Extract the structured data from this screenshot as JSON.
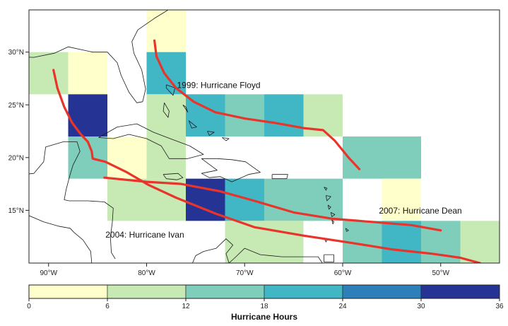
{
  "map": {
    "lon_range": [
      -92.0,
      -44.0
    ],
    "lat_range": [
      10.0,
      34.0
    ],
    "lon_ticks": [
      {
        "value": -90,
        "label": "90°W"
      },
      {
        "value": -80,
        "label": "80°W"
      },
      {
        "value": -70,
        "label": "70°W"
      },
      {
        "value": -60,
        "label": "60°W"
      },
      {
        "value": -50,
        "label": "50°W"
      }
    ],
    "lat_ticks": [
      {
        "value": 15,
        "label": "15°N"
      },
      {
        "value": 20,
        "label": "20°N"
      },
      {
        "value": 25,
        "label": "25°N"
      },
      {
        "value": 30,
        "label": "30°N"
      }
    ],
    "grid_cells": [
      {
        "lon_min": -80,
        "lon_max": -76,
        "lat_min": 30,
        "lat_max": 34,
        "hours": 3
      },
      {
        "lon_min": -92,
        "lon_max": -88,
        "lat_min": 26,
        "lat_max": 30,
        "hours": 9
      },
      {
        "lon_min": -88,
        "lon_max": -84,
        "lat_min": 26,
        "lat_max": 30,
        "hours": 3
      },
      {
        "lon_min": -80,
        "lon_max": -76,
        "lat_min": 26,
        "lat_max": 30,
        "hours": 21
      },
      {
        "lon_min": -88,
        "lon_max": -84,
        "lat_min": 22,
        "lat_max": 26,
        "hours": 33
      },
      {
        "lon_min": -80,
        "lon_max": -76,
        "lat_min": 22,
        "lat_max": 26,
        "hours": 9
      },
      {
        "lon_min": -76,
        "lon_max": -72,
        "lat_min": 22,
        "lat_max": 26,
        "hours": 21
      },
      {
        "lon_min": -72,
        "lon_max": -68,
        "lat_min": 22,
        "lat_max": 26,
        "hours": 15
      },
      {
        "lon_min": -68,
        "lon_max": -64,
        "lat_min": 22,
        "lat_max": 26,
        "hours": 21
      },
      {
        "lon_min": -64,
        "lon_max": -60,
        "lat_min": 22,
        "lat_max": 26,
        "hours": 9
      },
      {
        "lon_min": -88,
        "lon_max": -84,
        "lat_min": 18,
        "lat_max": 22,
        "hours": 15
      },
      {
        "lon_min": -84,
        "lon_max": -80,
        "lat_min": 18,
        "lat_max": 22,
        "hours": 3
      },
      {
        "lon_min": -80,
        "lon_max": -76,
        "lat_min": 18,
        "lat_max": 22,
        "hours": 9
      },
      {
        "lon_min": -60,
        "lon_max": -56,
        "lat_min": 18,
        "lat_max": 22,
        "hours": 15
      },
      {
        "lon_min": -56,
        "lon_max": -52,
        "lat_min": 18,
        "lat_max": 22,
        "hours": 15
      },
      {
        "lon_min": -84,
        "lon_max": -80,
        "lat_min": 14,
        "lat_max": 18,
        "hours": 9
      },
      {
        "lon_min": -80,
        "lon_max": -76,
        "lat_min": 14,
        "lat_max": 18,
        "hours": 9
      },
      {
        "lon_min": -76,
        "lon_max": -72,
        "lat_min": 14,
        "lat_max": 18,
        "hours": 33
      },
      {
        "lon_min": -72,
        "lon_max": -68,
        "lat_min": 14,
        "lat_max": 18,
        "hours": 21
      },
      {
        "lon_min": -68,
        "lon_max": -64,
        "lat_min": 14,
        "lat_max": 18,
        "hours": 15
      },
      {
        "lon_min": -64,
        "lon_max": -60,
        "lat_min": 14,
        "lat_max": 18,
        "hours": 15
      },
      {
        "lon_min": -56,
        "lon_max": -52,
        "lat_min": 14,
        "lat_max": 18,
        "hours": 3
      },
      {
        "lon_min": -72,
        "lon_max": -68,
        "lat_min": 10,
        "lat_max": 14,
        "hours": 9
      },
      {
        "lon_min": -68,
        "lon_max": -64,
        "lat_min": 10,
        "lat_max": 14,
        "hours": 9
      },
      {
        "lon_min": -60,
        "lon_max": -56,
        "lat_min": 10,
        "lat_max": 14,
        "hours": 15
      },
      {
        "lon_min": -56,
        "lon_max": -52,
        "lat_min": 10,
        "lat_max": 14,
        "hours": 21
      },
      {
        "lon_min": -52,
        "lon_max": -48,
        "lat_min": 10,
        "lat_max": 14,
        "hours": 15
      },
      {
        "lon_min": -48,
        "lon_max": -44,
        "lat_min": 10,
        "lat_max": 14,
        "hours": 9
      }
    ],
    "tracks": [
      {
        "name": "1999: Hurricane Floyd",
        "color": "#e8342a",
        "points": [
          [
            -79.2,
            31.1
          ],
          [
            -79.0,
            29.6
          ],
          [
            -78.2,
            28.0
          ],
          [
            -77.0,
            26.6
          ],
          [
            -75.2,
            25.3
          ],
          [
            -73.0,
            24.3
          ],
          [
            -70.0,
            23.7
          ],
          [
            -67.0,
            23.3
          ],
          [
            -64.0,
            22.8
          ],
          [
            -62.0,
            22.6
          ],
          [
            -60.8,
            21.6
          ],
          [
            -59.4,
            20.0
          ],
          [
            -58.3,
            18.9
          ]
        ]
      },
      {
        "name": "2004: Hurricane Ivan",
        "color": "#e8342a",
        "points": [
          [
            -89.5,
            28.3
          ],
          [
            -89.1,
            26.6
          ],
          [
            -88.4,
            24.8
          ],
          [
            -87.6,
            23.3
          ],
          [
            -86.7,
            22.2
          ],
          [
            -86.0,
            21.5
          ],
          [
            -85.6,
            20.6
          ],
          [
            -85.5,
            19.9
          ],
          [
            -84.2,
            19.6
          ],
          [
            -82.0,
            18.6
          ],
          [
            -79.8,
            17.4
          ],
          [
            -77.0,
            16.2
          ],
          [
            -73.0,
            14.7
          ],
          [
            -69.0,
            13.4
          ],
          [
            -64.0,
            12.6
          ],
          [
            -59.0,
            11.9
          ],
          [
            -55.0,
            11.3
          ],
          [
            -51.0,
            10.9
          ],
          [
            -48.0,
            10.5
          ],
          [
            -46.0,
            10.0
          ]
        ]
      },
      {
        "name": "2007: Hurricane Dean",
        "color": "#e8342a",
        "points": [
          [
            -84.3,
            18.1
          ],
          [
            -80.0,
            17.7
          ],
          [
            -76.5,
            17.5
          ],
          [
            -72.5,
            16.8
          ],
          [
            -69.0,
            15.9
          ],
          [
            -65.0,
            14.8
          ],
          [
            -61.0,
            14.2
          ],
          [
            -57.0,
            13.9
          ],
          [
            -53.0,
            13.6
          ],
          [
            -50.0,
            13.1
          ]
        ]
      }
    ],
    "storm_labels": [
      {
        "text": "1999: Hurricane Floyd",
        "lon": -76.9,
        "lat": 26.6
      },
      {
        "text": "2004: Hurricane Ivan",
        "lon": -84.2,
        "lat": 12.4
      },
      {
        "text": "2007: Hurricane Dean",
        "lon": -56.3,
        "lat": 14.7
      }
    ],
    "coastlines": [
      [
        [
          -97.2,
          27.6
        ],
        [
          -94.5,
          29.6
        ],
        [
          -91.5,
          29.5
        ],
        [
          -89.4,
          29.9
        ],
        [
          -88.0,
          30.5
        ],
        [
          -85.5,
          30.0
        ],
        [
          -84.0,
          30.0
        ],
        [
          -83.0,
          29.0
        ],
        [
          -82.6,
          27.8
        ],
        [
          -81.8,
          26.2
        ],
        [
          -81.0,
          25.2
        ],
        [
          -80.4,
          25.3
        ],
        [
          -80.1,
          26.5
        ],
        [
          -80.5,
          28.3
        ],
        [
          -81.3,
          29.9
        ],
        [
          -81.5,
          31.0
        ],
        [
          -80.9,
          32.1
        ],
        [
          -79.2,
          33.2
        ],
        [
          -77.8,
          34.0
        ],
        [
          -76.5,
          34.8
        ]
      ],
      [
        [
          -84.9,
          21.9
        ],
        [
          -83.0,
          22.9
        ],
        [
          -81.0,
          23.2
        ],
        [
          -79.3,
          22.4
        ],
        [
          -77.6,
          21.8
        ],
        [
          -75.6,
          21.1
        ],
        [
          -74.2,
          20.3
        ],
        [
          -75.8,
          19.9
        ],
        [
          -77.7,
          19.9
        ],
        [
          -78.5,
          21.1
        ],
        [
          -80.0,
          21.8
        ],
        [
          -81.8,
          22.2
        ],
        [
          -83.4,
          21.8
        ],
        [
          -84.9,
          21.9
        ]
      ],
      [
        [
          -74.4,
          19.9
        ],
        [
          -72.8,
          19.9
        ],
        [
          -71.3,
          19.8
        ],
        [
          -69.9,
          19.6
        ],
        [
          -68.4,
          18.6
        ],
        [
          -69.6,
          18.4
        ],
        [
          -71.3,
          17.7
        ],
        [
          -72.5,
          18.2
        ],
        [
          -73.6,
          18.1
        ],
        [
          -74.4,
          18.5
        ],
        [
          -72.8,
          18.8
        ],
        [
          -74.4,
          19.9
        ]
      ],
      [
        [
          -78.3,
          18.4
        ],
        [
          -76.8,
          18.5
        ],
        [
          -76.3,
          18.1
        ],
        [
          -76.9,
          17.9
        ],
        [
          -78.0,
          18.0
        ],
        [
          -78.3,
          18.4
        ]
      ],
      [
        [
          -67.2,
          18.4
        ],
        [
          -65.6,
          18.4
        ],
        [
          -65.7,
          18.0
        ],
        [
          -67.2,
          18.0
        ],
        [
          -67.2,
          18.4
        ]
      ],
      [
        [
          -97.0,
          21.0
        ],
        [
          -97.5,
          20.0
        ],
        [
          -96.5,
          19.0
        ],
        [
          -95.0,
          18.6
        ],
        [
          -93.5,
          18.3
        ],
        [
          -91.5,
          18.5
        ],
        [
          -90.5,
          19.6
        ],
        [
          -90.3,
          21.0
        ],
        [
          -88.5,
          21.5
        ],
        [
          -87.1,
          21.5
        ],
        [
          -86.8,
          20.6
        ],
        [
          -87.5,
          19.3
        ],
        [
          -87.8,
          18.4
        ],
        [
          -88.2,
          17.0
        ],
        [
          -88.4,
          16.0
        ],
        [
          -87.9,
          15.9
        ],
        [
          -86.0,
          15.9
        ],
        [
          -84.3,
          15.8
        ],
        [
          -83.4,
          15.2
        ],
        [
          -83.5,
          13.8
        ],
        [
          -83.7,
          12.5
        ],
        [
          -83.6,
          11.0
        ],
        [
          -83.2,
          10.4
        ]
      ],
      [
        [
          -97.0,
          15.9
        ],
        [
          -94.5,
          16.2
        ],
        [
          -93.0,
          15.6
        ],
        [
          -92.0,
          14.5
        ],
        [
          -90.5,
          13.9
        ],
        [
          -89.0,
          13.5
        ],
        [
          -87.8,
          13.3
        ],
        [
          -87.4,
          12.9
        ],
        [
          -86.5,
          12.2
        ],
        [
          -85.7,
          11.1
        ],
        [
          -85.6,
          10.0
        ]
      ],
      [
        [
          -77.9,
          7.2
        ],
        [
          -76.7,
          8.3
        ],
        [
          -75.6,
          9.4
        ],
        [
          -75.0,
          10.7
        ],
        [
          -74.2,
          11.1
        ],
        [
          -72.9,
          11.4
        ],
        [
          -71.9,
          12.3
        ],
        [
          -71.2,
          11.7
        ],
        [
          -71.9,
          10.9
        ],
        [
          -71.6,
          10.0
        ],
        [
          -71.0,
          10.5
        ],
        [
          -70.0,
          11.4
        ],
        [
          -68.4,
          10.8
        ],
        [
          -66.2,
          10.6
        ],
        [
          -64.2,
          10.6
        ],
        [
          -62.5,
          10.6
        ],
        [
          -61.5,
          9.2
        ],
        [
          -60.5,
          8.5
        ]
      ],
      [
        [
          -61.9,
          10.8
        ],
        [
          -60.9,
          10.8
        ],
        [
          -60.9,
          10.1
        ],
        [
          -61.9,
          10.1
        ],
        [
          -61.9,
          10.8
        ]
      ],
      [
        [
          -78.0,
          26.9
        ],
        [
          -77.1,
          26.6
        ],
        [
          -77.3,
          25.9
        ],
        [
          -78.0,
          26.6
        ],
        [
          -78.0,
          26.9
        ]
      ],
      [
        [
          -78.2,
          25.2
        ],
        [
          -77.7,
          24.4
        ],
        [
          -77.8,
          23.8
        ],
        [
          -78.3,
          24.4
        ],
        [
          -78.2,
          25.2
        ]
      ],
      [
        [
          -76.3,
          25.0
        ],
        [
          -75.8,
          24.3
        ],
        [
          -76.0,
          24.8
        ],
        [
          -76.3,
          25.0
        ]
      ],
      [
        [
          -75.7,
          23.5
        ],
        [
          -74.9,
          22.9
        ],
        [
          -75.4,
          22.8
        ],
        [
          -75.7,
          23.5
        ]
      ],
      [
        [
          -73.8,
          22.5
        ],
        [
          -73.1,
          22.4
        ],
        [
          -73.6,
          22.1
        ],
        [
          -73.8,
          22.5
        ]
      ],
      [
        [
          -72.3,
          21.9
        ],
        [
          -71.6,
          21.8
        ],
        [
          -71.9,
          21.6
        ],
        [
          -72.3,
          21.9
        ]
      ],
      [
        [
          -61.9,
          17.2
        ],
        [
          -61.6,
          17.1
        ],
        [
          -61.7,
          16.9
        ],
        [
          -61.9,
          17.2
        ]
      ],
      [
        [
          -61.7,
          16.4
        ],
        [
          -61.2,
          16.3
        ],
        [
          -61.6,
          15.9
        ],
        [
          -61.7,
          16.4
        ]
      ],
      [
        [
          -61.5,
          15.5
        ],
        [
          -61.2,
          15.3
        ],
        [
          -61.4,
          15.1
        ],
        [
          -61.5,
          15.5
        ]
      ],
      [
        [
          -61.2,
          14.8
        ],
        [
          -60.8,
          14.6
        ],
        [
          -61.1,
          14.4
        ],
        [
          -61.2,
          14.8
        ]
      ],
      [
        [
          -61.1,
          14.1
        ],
        [
          -60.9,
          13.9
        ],
        [
          -61.0,
          13.7
        ],
        [
          -61.1,
          14.1
        ]
      ],
      [
        [
          -59.7,
          13.3
        ],
        [
          -59.4,
          13.1
        ],
        [
          -59.6,
          13.0
        ],
        [
          -59.7,
          13.3
        ]
      ],
      [
        [
          -61.8,
          12.2
        ],
        [
          -61.6,
          12.2
        ],
        [
          -61.7,
          12.0
        ],
        [
          -61.8,
          12.2
        ]
      ]
    ]
  },
  "legend": {
    "title": "Hurricane Hours",
    "min": 0,
    "max": 36,
    "tick_labels": [
      "0",
      "6",
      "12",
      "18",
      "24",
      "30",
      "36"
    ],
    "bins": [
      {
        "from": 0,
        "to": 6,
        "color": "#ffffcc"
      },
      {
        "from": 6,
        "to": 12,
        "color": "#c7e9b4"
      },
      {
        "from": 12,
        "to": 18,
        "color": "#7fcdbb"
      },
      {
        "from": 18,
        "to": 24,
        "color": "#41b6c4"
      },
      {
        "from": 24,
        "to": 30,
        "color": "#2c7fb8"
      },
      {
        "from": 30,
        "to": 36,
        "color": "#253494"
      }
    ]
  },
  "colors": {
    "track": "#e8342a",
    "coastline": "#1a1a1a",
    "frame": "#222222"
  }
}
